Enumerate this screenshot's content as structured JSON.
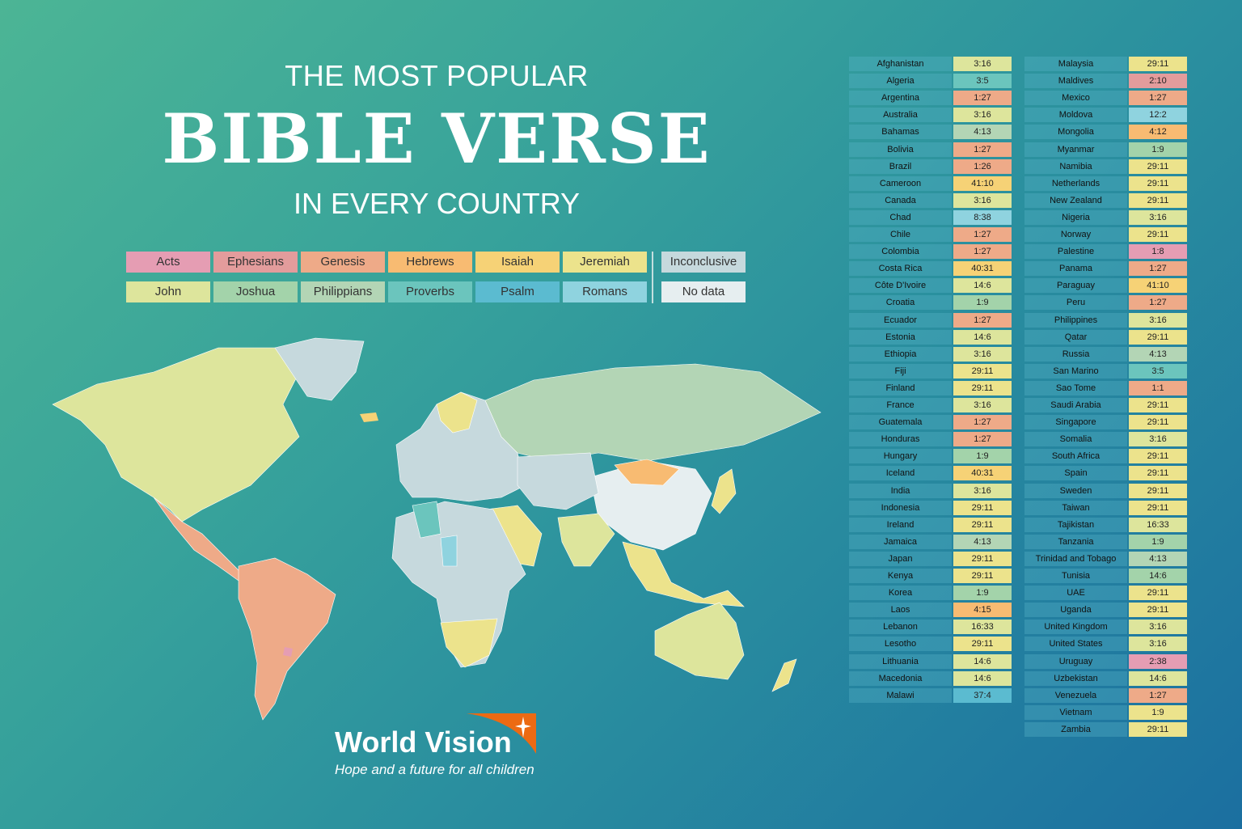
{
  "title": {
    "line1": "THE MOST POPULAR",
    "line2": "BIBLE VERSE",
    "line3": "IN EVERY COUNTRY"
  },
  "legend": [
    {
      "label": "Acts",
      "color": "#e59db3"
    },
    {
      "label": "Ephesians",
      "color": "#e39c9c"
    },
    {
      "label": "Genesis",
      "color": "#eeaa88"
    },
    {
      "label": "Hebrews",
      "color": "#f8bb72"
    },
    {
      "label": "Isaiah",
      "color": "#f6d276"
    },
    {
      "label": "Jeremiah",
      "color": "#ece38c"
    },
    {
      "label": "John",
      "color": "#dde59c"
    },
    {
      "label": "Joshua",
      "color": "#a3d3aa"
    },
    {
      "label": "Philippians",
      "color": "#b3d5b5"
    },
    {
      "label": "Proverbs",
      "color": "#6bc5bd"
    },
    {
      "label": "Psalm",
      "color": "#5bbbd0"
    },
    {
      "label": "Romans",
      "color": "#8fd3df"
    },
    {
      "label": "Inconclusive",
      "color": "#c6d9dd"
    },
    {
      "label": "No data",
      "color": "#e6eef0"
    }
  ],
  "table_left": [
    [
      "Afghanistan",
      "3:16",
      "John"
    ],
    [
      "Algeria",
      "3:5",
      "Proverbs"
    ],
    [
      "Argentina",
      "1:27",
      "Genesis"
    ],
    [
      "Australia",
      "3:16",
      "John"
    ],
    [
      "Bahamas",
      "4:13",
      "Philippians"
    ],
    [
      "Bolivia",
      "1:27",
      "Genesis"
    ],
    [
      "Brazil",
      "1:26",
      "Genesis"
    ],
    [
      "Cameroon",
      "41:10",
      "Isaiah"
    ],
    [
      "Canada",
      "3:16",
      "John"
    ],
    [
      "Chad",
      "8:38",
      "Romans"
    ],
    [
      "Chile",
      "1:27",
      "Genesis"
    ],
    [
      "Colombia",
      "1:27",
      "Genesis"
    ],
    [
      "Costa Rica",
      "40:31",
      "Isaiah"
    ],
    [
      "Côte D'Ivoire",
      "14:6",
      "John"
    ],
    [
      "Croatia",
      "1:9",
      "Joshua"
    ],
    [
      "Ecuador",
      "1:27",
      "Genesis"
    ],
    [
      "Estonia",
      "14:6",
      "John"
    ],
    [
      "Ethiopia",
      "3:16",
      "John"
    ],
    [
      "Fiji",
      "29:11",
      "Jeremiah"
    ],
    [
      "Finland",
      "29:11",
      "Jeremiah"
    ],
    [
      "France",
      "3:16",
      "John"
    ],
    [
      "Guatemala",
      "1:27",
      "Genesis"
    ],
    [
      "Honduras",
      "1:27",
      "Genesis"
    ],
    [
      "Hungary",
      "1:9",
      "Joshua"
    ],
    [
      "Iceland",
      "40:31",
      "Isaiah"
    ],
    [
      "India",
      "3:16",
      "John"
    ],
    [
      "Indonesia",
      "29:11",
      "Jeremiah"
    ],
    [
      "Ireland",
      "29:11",
      "Jeremiah"
    ],
    [
      "Jamaica",
      "4:13",
      "Philippians"
    ],
    [
      "Japan",
      "29:11",
      "Jeremiah"
    ],
    [
      "Kenya",
      "29:11",
      "Jeremiah"
    ],
    [
      "Korea",
      "1:9",
      "Joshua"
    ],
    [
      "Laos",
      "4:15",
      "Hebrews"
    ],
    [
      "Lebanon",
      "16:33",
      "John"
    ],
    [
      "Lesotho",
      "29:11",
      "Jeremiah"
    ],
    [
      "Lithuania",
      "14:6",
      "John"
    ],
    [
      "Macedonia",
      "14:6",
      "John"
    ],
    [
      "Malawi",
      "37:4",
      "Psalm"
    ]
  ],
  "table_right": [
    [
      "Malaysia",
      "29:11",
      "Jeremiah"
    ],
    [
      "Maldives",
      "2:10",
      "Ephesians"
    ],
    [
      "Mexico",
      "1:27",
      "Genesis"
    ],
    [
      "Moldova",
      "12:2",
      "Romans"
    ],
    [
      "Mongolia",
      "4:12",
      "Hebrews"
    ],
    [
      "Myanmar",
      "1:9",
      "Joshua"
    ],
    [
      "Namibia",
      "29:11",
      "Jeremiah"
    ],
    [
      "Netherlands",
      "29:11",
      "Jeremiah"
    ],
    [
      "New Zealand",
      "29:11",
      "Jeremiah"
    ],
    [
      "Nigeria",
      "3:16",
      "John"
    ],
    [
      "Norway",
      "29:11",
      "Jeremiah"
    ],
    [
      "Palestine",
      "1:8",
      "Acts"
    ],
    [
      "Panama",
      "1:27",
      "Genesis"
    ],
    [
      "Paraguay",
      "41:10",
      "Isaiah"
    ],
    [
      "Peru",
      "1:27",
      "Genesis"
    ],
    [
      "Philippines",
      "3:16",
      "John"
    ],
    [
      "Qatar",
      "29:11",
      "Jeremiah"
    ],
    [
      "Russia",
      "4:13",
      "Philippians"
    ],
    [
      "San Marino",
      "3:5",
      "Proverbs"
    ],
    [
      "Sao Tome",
      "1:1",
      "Genesis"
    ],
    [
      "Saudi Arabia",
      "29:11",
      "Jeremiah"
    ],
    [
      "Singapore",
      "29:11",
      "Jeremiah"
    ],
    [
      "Somalia",
      "3:16",
      "John"
    ],
    [
      "South Africa",
      "29:11",
      "Jeremiah"
    ],
    [
      "Spain",
      "29:11",
      "Jeremiah"
    ],
    [
      "Sweden",
      "29:11",
      "Jeremiah"
    ],
    [
      "Taiwan",
      "29:11",
      "Jeremiah"
    ],
    [
      "Tajikistan",
      "16:33",
      "John"
    ],
    [
      "Tanzania",
      "1:9",
      "Joshua"
    ],
    [
      "Trinidad and Tobago",
      "4:13",
      "Philippians"
    ],
    [
      "Tunisia",
      "14:6",
      "Joshua"
    ],
    [
      "UAE",
      "29:11",
      "Jeremiah"
    ],
    [
      "Uganda",
      "29:11",
      "Jeremiah"
    ],
    [
      "United Kingdom",
      "3:16",
      "John"
    ],
    [
      "United States",
      "3:16",
      "John"
    ],
    [
      "Uruguay",
      "2:38",
      "Acts"
    ],
    [
      "Uzbekistan",
      "14:6",
      "John"
    ],
    [
      "Venezuela",
      "1:27",
      "Genesis"
    ],
    [
      "Vietnam",
      "1:9",
      "Jeremiah"
    ],
    [
      "Zambia",
      "29:11",
      "Jeremiah"
    ]
  ],
  "logo": {
    "name": "World Vision",
    "tagline": "Hope and a future for all children",
    "brand_color": "#ec6a13"
  }
}
